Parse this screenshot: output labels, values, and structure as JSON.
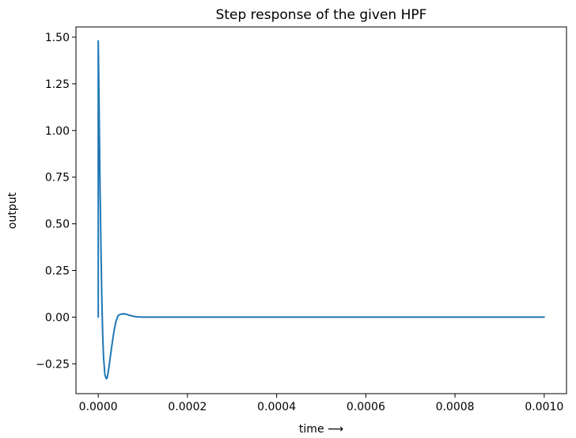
{
  "chart_data": {
    "type": "line",
    "title": "Step response of the given HPF",
    "xlabel": "time ⟶",
    "ylabel": "output",
    "xlim": [
      -5e-05,
      0.00105
    ],
    "ylim": [
      -0.41,
      1.555
    ],
    "x_ticks": [
      0.0,
      0.0002,
      0.0004,
      0.0006,
      0.0008,
      0.001
    ],
    "x_tick_labels": [
      "0.0000",
      "0.0002",
      "0.0004",
      "0.0006",
      "0.0008",
      "0.0010"
    ],
    "y_ticks": [
      -0.25,
      0.0,
      0.25,
      0.5,
      0.75,
      1.0,
      1.25,
      1.5
    ],
    "y_tick_labels": [
      "−0.25",
      "0.00",
      "0.25",
      "0.50",
      "0.75",
      "1.00",
      "1.25",
      "1.50"
    ],
    "grid": false,
    "line_color": "#1f77b4",
    "series": [
      {
        "x": [
          0.0,
          0.0,
          1e-06,
          2e-06,
          3e-06,
          4e-06,
          6e-06,
          8e-06,
          1e-05,
          1.2e-05,
          1.5e-05,
          1.8e-05,
          2e-05,
          2.2e-05,
          2.5e-05,
          3e-05,
          3.5e-05,
          4e-05,
          4.5e-05,
          5e-05,
          5.5e-05,
          6e-05,
          6.5e-05,
          7e-05,
          7.5e-05,
          8e-05,
          9e-05,
          0.0001,
          0.00011,
          0.00012,
          0.00015,
          0.0002,
          0.0004,
          0.0006,
          0.0008,
          0.001
        ],
        "y": [
          0.0,
          1.48,
          1.3,
          1.1,
          0.9,
          0.7,
          0.38,
          0.1,
          -0.1,
          -0.22,
          -0.31,
          -0.33,
          -0.325,
          -0.3,
          -0.25,
          -0.16,
          -0.08,
          -0.02,
          0.01,
          0.015,
          0.018,
          0.017,
          0.014,
          0.01,
          0.007,
          0.004,
          0.001,
          0.0,
          0.0,
          0.0,
          0.0,
          0.0,
          0.0,
          0.0,
          0.0,
          0.0
        ]
      }
    ]
  }
}
